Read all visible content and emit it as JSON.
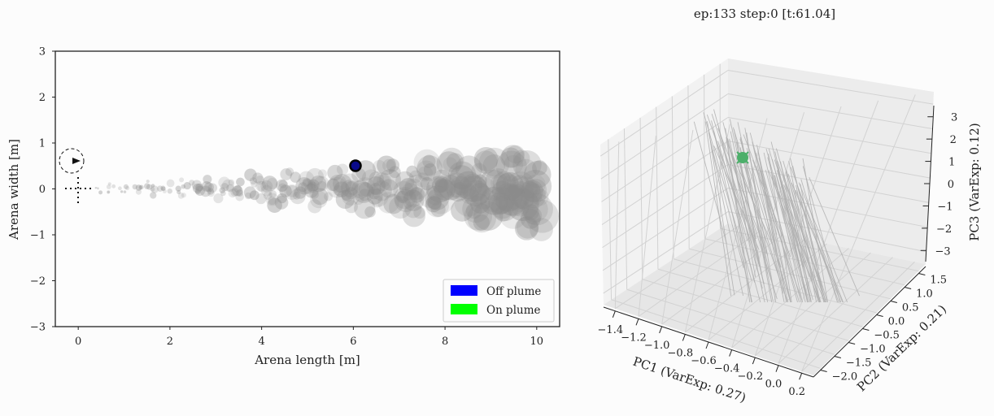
{
  "suptitle": "ep:133 step:0 [t:61.04]",
  "chart_data": [
    {
      "type": "scatter",
      "xlabel": "Arena length [m]",
      "ylabel": "Arena width [m]",
      "xlim": [
        -0.5,
        10.5
      ],
      "ylim": [
        -3,
        3
      ],
      "xticks": [
        0,
        2,
        4,
        6,
        8,
        10
      ],
      "yticks": [
        -3,
        -2,
        -1,
        0,
        1,
        2,
        3
      ],
      "legend": {
        "position": "lower-right",
        "entries": [
          {
            "label": "Off plume",
            "color": "#0000ff"
          },
          {
            "label": "On plume",
            "color": "#00ff00"
          }
        ]
      },
      "agent": {
        "x": 6.05,
        "y": 0.52,
        "state": "Off plume",
        "fill": "#0a0a8a",
        "edge": "#000000"
      },
      "source_marker": {
        "x": 0.0,
        "y": 0.0,
        "style": "dotted cross"
      },
      "wind_indicator": {
        "x": -0.15,
        "y": 0.62,
        "direction": "right"
      },
      "plume": {
        "color": "#8c8c8c",
        "centerline_y": 0.0,
        "x_range": [
          0.3,
          10.0
        ],
        "halfwidth_at_start": 0.05,
        "halfwidth_at_end": 0.55,
        "puffs": [
          {
            "x": 0.4,
            "y": 0.02
          },
          {
            "x": 0.6,
            "y": -0.03
          },
          {
            "x": 0.8,
            "y": 0.05
          },
          {
            "x": 1.0,
            "y": -0.04
          },
          {
            "x": 1.2,
            "y": 0.06
          },
          {
            "x": 1.4,
            "y": -0.02
          },
          {
            "x": 1.6,
            "y": 0.08
          },
          {
            "x": 1.8,
            "y": -0.07
          },
          {
            "x": 2.0,
            "y": 0.05
          },
          {
            "x": 2.2,
            "y": -0.05
          },
          {
            "x": 2.4,
            "y": 0.1
          },
          {
            "x": 2.6,
            "y": -0.04
          },
          {
            "x": 2.8,
            "y": 0.07
          },
          {
            "x": 3.0,
            "y": -0.1
          },
          {
            "x": 3.2,
            "y": 0.12
          },
          {
            "x": 3.4,
            "y": 0.0
          },
          {
            "x": 3.6,
            "y": -0.12
          },
          {
            "x": 3.8,
            "y": 0.15
          },
          {
            "x": 4.0,
            "y": -0.08
          },
          {
            "x": 4.2,
            "y": 0.05
          },
          {
            "x": 4.4,
            "y": -0.15
          },
          {
            "x": 4.6,
            "y": 0.18
          },
          {
            "x": 4.8,
            "y": -0.05
          },
          {
            "x": 5.0,
            "y": 0.12
          },
          {
            "x": 5.2,
            "y": -0.18
          },
          {
            "x": 5.4,
            "y": 0.08
          },
          {
            "x": 5.6,
            "y": 0.22
          },
          {
            "x": 5.8,
            "y": -0.12
          },
          {
            "x": 6.0,
            "y": 0.05
          },
          {
            "x": 6.2,
            "y": -0.22
          },
          {
            "x": 6.4,
            "y": 0.2
          },
          {
            "x": 6.6,
            "y": -0.05
          },
          {
            "x": 6.8,
            "y": 0.25
          },
          {
            "x": 7.0,
            "y": -0.2
          },
          {
            "x": 7.2,
            "y": 0.1
          },
          {
            "x": 7.4,
            "y": -0.28
          },
          {
            "x": 7.6,
            "y": 0.3
          },
          {
            "x": 7.8,
            "y": 0.0
          },
          {
            "x": 8.0,
            "y": -0.25
          },
          {
            "x": 8.2,
            "y": 0.35
          },
          {
            "x": 8.4,
            "y": -0.1
          },
          {
            "x": 8.6,
            "y": 0.2
          },
          {
            "x": 8.8,
            "y": -0.35
          },
          {
            "x": 9.0,
            "y": 0.3
          },
          {
            "x": 9.2,
            "y": 0.0
          },
          {
            "x": 9.4,
            "y": -0.3
          },
          {
            "x": 9.6,
            "y": 0.4
          },
          {
            "x": 9.8,
            "y": -0.15
          },
          {
            "x": 9.9,
            "y": 0.15
          },
          {
            "x": 9.95,
            "y": -0.45
          }
        ]
      }
    },
    {
      "type": "line",
      "projection": "3d",
      "xlabel": "PC1 (VarExp: 0.27)",
      "ylabel": "PC2 (VarExp: 0.21)",
      "zlabel": "PC3 (VarExp: 0.12)",
      "xlim": [
        -1.5,
        0.25
      ],
      "ylim": [
        -2.1,
        1.8
      ],
      "zlim": [
        -3.3,
        3.4
      ],
      "xticks": [
        "−1.4",
        "−1.2",
        "−1.0",
        "−0.8",
        "−0.6",
        "−0.4",
        "−0.2",
        "0.0",
        "0.2"
      ],
      "yticks": [
        "−2.0",
        "−1.5",
        "−1.0",
        "−0.5",
        "0.0",
        "0.5",
        "1.0",
        "1.5"
      ],
      "zticks": [
        "−3",
        "−2",
        "−1",
        "0",
        "1",
        "2",
        "3"
      ],
      "trajectory_color": "#b0b0b0",
      "current_point": {
        "color": "#4caf6a",
        "marker": "x"
      },
      "grid": true
    }
  ]
}
